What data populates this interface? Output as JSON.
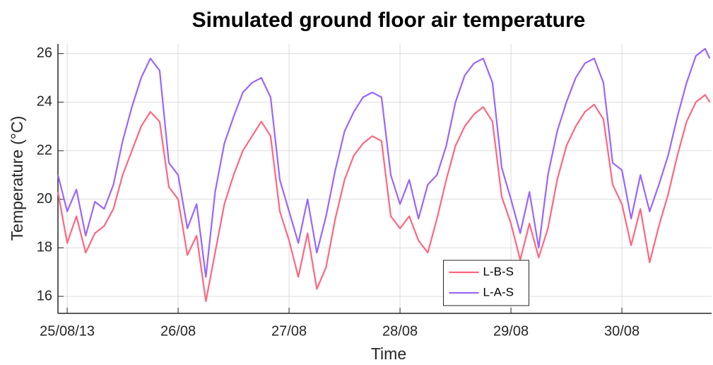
{
  "chart_data": {
    "type": "line",
    "title": "Simulated ground floor air temperature",
    "xlabel": "Time",
    "ylabel": "Temperature (°C)",
    "x": [
      -2,
      0,
      2,
      4,
      6,
      8,
      10,
      12,
      14,
      16,
      18,
      20,
      22,
      24,
      26,
      28,
      30,
      32,
      34,
      36,
      38,
      40,
      42,
      44,
      46,
      48,
      50,
      52,
      54,
      56,
      58,
      60,
      62,
      64,
      66,
      68,
      70,
      72,
      74,
      76,
      78,
      80,
      82,
      84,
      86,
      88,
      90,
      92,
      94,
      96,
      98,
      100,
      102,
      104,
      106,
      108,
      110,
      112,
      114,
      116,
      118,
      120,
      122,
      124,
      126,
      128,
      130,
      132,
      134,
      136,
      138,
      139
    ],
    "series": [
      {
        "name": "L-B-S",
        "color": "#ff6680",
        "values": [
          20.3,
          18.2,
          19.3,
          17.8,
          18.6,
          18.9,
          19.6,
          21.0,
          22.0,
          23.0,
          23.6,
          23.2,
          20.5,
          20.0,
          17.7,
          18.5,
          15.8,
          17.8,
          19.8,
          21.0,
          22.0,
          22.6,
          23.2,
          22.6,
          19.5,
          18.3,
          16.8,
          18.6,
          16.3,
          17.2,
          19.2,
          20.8,
          21.8,
          22.3,
          22.6,
          22.4,
          19.3,
          18.8,
          19.3,
          18.3,
          17.8,
          19.2,
          20.8,
          22.2,
          23.0,
          23.5,
          23.8,
          23.2,
          20.1,
          19.0,
          17.5,
          19.0,
          17.6,
          18.8,
          20.8,
          22.2,
          23.0,
          23.6,
          23.9,
          23.3,
          20.6,
          19.8,
          18.1,
          19.6,
          17.4,
          18.9,
          20.2,
          21.8,
          23.2,
          24.0,
          24.3,
          24.0
        ]
      },
      {
        "name": "L-A-S",
        "color": "#9966ff",
        "values": [
          21.0,
          19.5,
          20.4,
          18.5,
          19.9,
          19.6,
          20.6,
          22.4,
          23.8,
          25.0,
          25.8,
          25.3,
          21.5,
          21.0,
          18.8,
          19.8,
          16.8,
          20.3,
          22.3,
          23.4,
          24.4,
          24.8,
          25.0,
          24.2,
          20.8,
          19.5,
          18.2,
          20.0,
          17.8,
          19.3,
          21.2,
          22.8,
          23.6,
          24.2,
          24.4,
          24.2,
          21.0,
          19.8,
          20.8,
          19.2,
          20.6,
          21.0,
          22.2,
          24.0,
          25.1,
          25.6,
          25.8,
          24.8,
          21.3,
          20.0,
          18.6,
          20.3,
          18.0,
          21.0,
          22.8,
          24.0,
          25.0,
          25.6,
          25.8,
          24.8,
          21.5,
          21.2,
          19.2,
          21.0,
          19.5,
          20.6,
          21.8,
          23.4,
          24.8,
          25.9,
          26.2,
          25.8
        ]
      }
    ],
    "xlim": [
      -2,
      139.4
    ],
    "xticks": [
      {
        "value": 0,
        "label": "25/08/13"
      },
      {
        "value": 24,
        "label": "26/08"
      },
      {
        "value": 48,
        "label": "27/08"
      },
      {
        "value": 72,
        "label": "28/08"
      },
      {
        "value": 96,
        "label": "29/08"
      },
      {
        "value": 120,
        "label": "30/08"
      }
    ],
    "ylim": [
      15.3,
      26.4
    ],
    "yticks": [
      16,
      18,
      20,
      22,
      24,
      26
    ],
    "grid": true,
    "legend": "south"
  }
}
